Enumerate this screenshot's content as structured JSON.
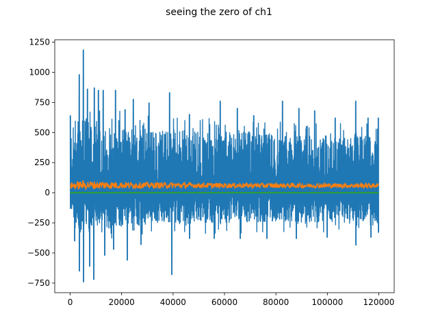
{
  "chart_data": {
    "type": "line",
    "title": "seeing the zero of ch1",
    "xlabel": "",
    "ylabel": "",
    "xlim": [
      -6000,
      126000
    ],
    "ylim": [
      -830,
      1270
    ],
    "xticks": [
      0,
      20000,
      40000,
      60000,
      80000,
      100000,
      120000
    ],
    "xtick_labels": [
      "0",
      "20000",
      "40000",
      "60000",
      "80000",
      "100000",
      "120000"
    ],
    "yticks": [
      -750,
      -500,
      -250,
      0,
      250,
      500,
      750,
      1000,
      1250
    ],
    "ytick_labels": [
      "−750",
      "−500",
      "−250",
      "0",
      "250",
      "500",
      "750",
      "1000",
      "1250"
    ],
    "grid": false,
    "series": [
      {
        "color": "#1f77b4",
        "description": "raw ch1 signal, dense noisy trace",
        "x_range": [
          0,
          120000
        ],
        "band_upper": [
          [
            0,
            540
          ],
          [
            2000,
            560
          ],
          [
            4000,
            620
          ],
          [
            6000,
            600
          ],
          [
            10000,
            580
          ],
          [
            20000,
            560
          ],
          [
            30000,
            540
          ],
          [
            40000,
            520
          ],
          [
            50000,
            510
          ],
          [
            60000,
            500
          ],
          [
            80000,
            490
          ],
          [
            100000,
            470
          ],
          [
            120000,
            460
          ]
        ],
        "band_lower": [
          [
            0,
            -120
          ],
          [
            2000,
            -280
          ],
          [
            4000,
            -330
          ],
          [
            6000,
            -330
          ],
          [
            10000,
            -320
          ],
          [
            20000,
            -290
          ],
          [
            30000,
            -270
          ],
          [
            40000,
            -260
          ],
          [
            60000,
            -250
          ],
          [
            80000,
            -240
          ],
          [
            100000,
            -250
          ],
          [
            120000,
            -240
          ]
        ],
        "peaks": [
          [
            200,
            640
          ],
          [
            3600,
            980
          ],
          [
            5300,
            1185
          ],
          [
            6700,
            860
          ],
          [
            9400,
            870
          ],
          [
            11000,
            850
          ],
          [
            13000,
            850
          ],
          [
            17600,
            850
          ],
          [
            21500,
            690
          ],
          [
            24500,
            775
          ],
          [
            30800,
            745
          ],
          [
            38600,
            830
          ],
          [
            46400,
            650
          ],
          [
            58500,
            760
          ],
          [
            65000,
            700
          ],
          [
            71500,
            640
          ],
          [
            82700,
            760
          ],
          [
            89000,
            700
          ],
          [
            95000,
            680
          ],
          [
            103000,
            620
          ],
          [
            111000,
            760
          ],
          [
            116000,
            620
          ],
          [
            119800,
            620
          ]
        ],
        "troughs": [
          [
            0,
            -130
          ],
          [
            1800,
            -400
          ],
          [
            3700,
            -650
          ],
          [
            5200,
            -740
          ],
          [
            7600,
            -610
          ],
          [
            9200,
            -720
          ],
          [
            13300,
            -520
          ],
          [
            16800,
            -470
          ],
          [
            22300,
            -560
          ],
          [
            27500,
            -430
          ],
          [
            39600,
            -680
          ],
          [
            46500,
            -380
          ],
          [
            56000,
            -380
          ],
          [
            66000,
            -380
          ],
          [
            76500,
            -380
          ],
          [
            88000,
            -380
          ],
          [
            100000,
            -370
          ],
          [
            111200,
            -435
          ],
          [
            117000,
            -370
          ],
          [
            119800,
            -330
          ]
        ]
      },
      {
        "color": "#ff7f0e",
        "description": "smoothed ch1 signal",
        "x_range": [
          0,
          120000
        ],
        "mean": 55,
        "band_upper": [
          [
            0,
            85
          ],
          [
            5000,
            100
          ],
          [
            20000,
            90
          ],
          [
            60000,
            80
          ],
          [
            120000,
            78
          ]
        ],
        "band_lower": [
          [
            0,
            30
          ],
          [
            5000,
            28
          ],
          [
            20000,
            35
          ],
          [
            60000,
            40
          ],
          [
            120000,
            40
          ]
        ]
      },
      {
        "color": "#2ca02c",
        "description": "zero reference line",
        "x": [
          0,
          120000
        ],
        "values": [
          0,
          0
        ]
      }
    ]
  }
}
